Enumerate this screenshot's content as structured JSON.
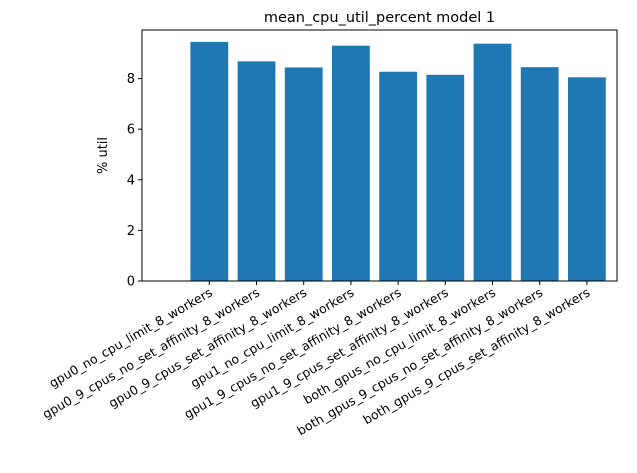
{
  "chart_data": {
    "type": "bar",
    "title": "mean_cpu_util_percent model 1",
    "xlabel": "",
    "ylabel": "% util",
    "categories": [
      "gpu0_no_cpu_limit_8_workers",
      "gpu0_9_cpus_no_set_affinity_8_workers",
      "gpu0_9_cpus_set_affinity_8_workers",
      "gpu1_no_cpu_limit_8_workers",
      "gpu1_9_cpus_no_set_affinity_8_workers",
      "gpu1_9_cpus_set_affinity_8_workers",
      "both_gpus_no_cpu_limit_8_workers",
      "both_gpus_9_cpus_no_set_affinity_8_workers",
      "both_gpus_9_cpus_set_affinity_8_workers"
    ],
    "values": [
      9.45,
      8.68,
      8.44,
      9.3,
      8.27,
      8.15,
      9.38,
      8.45,
      8.05
    ],
    "ylim": [
      0,
      9.92
    ],
    "yticks": [
      0,
      2,
      4,
      6,
      8
    ],
    "grid": false,
    "colors": {
      "bar": "#1f77b4",
      "axis": "#000000",
      "background": "#ffffff"
    }
  }
}
